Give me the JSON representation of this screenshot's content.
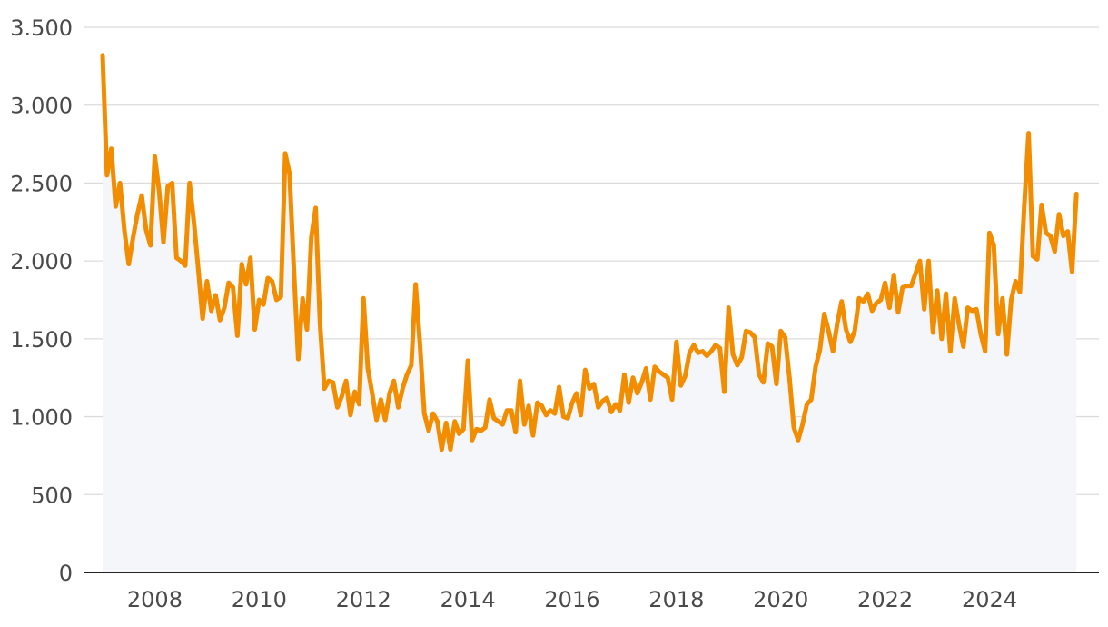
{
  "chart_data": {
    "type": "area",
    "title": "",
    "xlabel": "",
    "ylabel": "",
    "x_start": "2007-01",
    "x_step_months": 1,
    "xlim": [
      2007.0,
      2025.75
    ],
    "ylim": [
      0,
      3500
    ],
    "grid": true,
    "legend": "none",
    "x_ticks": [
      2008,
      2010,
      2012,
      2014,
      2016,
      2018,
      2020,
      2022,
      2024
    ],
    "x_tick_labels": [
      "2008",
      "2010",
      "2012",
      "2014",
      "2016",
      "2018",
      "2020",
      "2022",
      "2024"
    ],
    "y_ticks": [
      0,
      500,
      1000,
      1500,
      2000,
      2500,
      3000,
      3500
    ],
    "y_tick_labels": [
      "0",
      "500",
      "1.000",
      "1.500",
      "2.000",
      "2.500",
      "3.000",
      "3.500"
    ],
    "colors": {
      "line": "#f28c00",
      "fill": "#f5f6fa",
      "grid": "#dcdcdc",
      "axis": "#222222",
      "text": "#4a4a4a"
    },
    "series": [
      {
        "values": [
          3320,
          2550,
          2720,
          2350,
          2500,
          2200,
          1980,
          2150,
          2300,
          2420,
          2200,
          2100,
          2670,
          2450,
          2120,
          2480,
          2500,
          2020,
          2000,
          1970,
          2500,
          2250,
          1950,
          1630,
          1870,
          1680,
          1780,
          1620,
          1700,
          1860,
          1830,
          1520,
          1980,
          1850,
          2020,
          1560,
          1750,
          1720,
          1890,
          1870,
          1750,
          1770,
          2690,
          2560,
          1940,
          1370,
          1760,
          1560,
          2150,
          2340,
          1600,
          1180,
          1230,
          1220,
          1060,
          1130,
          1230,
          1010,
          1160,
          1080,
          1760,
          1310,
          1150,
          980,
          1110,
          980,
          1150,
          1230,
          1060,
          1180,
          1270,
          1330,
          1850,
          1460,
          1020,
          910,
          1020,
          970,
          790,
          960,
          790,
          970,
          890,
          920,
          1360,
          850,
          920,
          910,
          930,
          1110,
          990,
          970,
          950,
          1040,
          1040,
          900,
          1230,
          950,
          1070,
          880,
          1090,
          1070,
          1010,
          1040,
          1020,
          1190,
          1000,
          990,
          1090,
          1150,
          1010,
          1300,
          1180,
          1210,
          1060,
          1100,
          1120,
          1030,
          1080,
          1040,
          1270,
          1090,
          1250,
          1150,
          1220,
          1310,
          1110,
          1320,
          1290,
          1270,
          1250,
          1110,
          1480,
          1200,
          1260,
          1410,
          1460,
          1410,
          1420,
          1390,
          1420,
          1460,
          1440,
          1160,
          1700,
          1400,
          1330,
          1380,
          1550,
          1540,
          1510,
          1270,
          1220,
          1470,
          1450,
          1210,
          1550,
          1510,
          1250,
          930,
          850,
          950,
          1080,
          1110,
          1320,
          1430,
          1660,
          1550,
          1420,
          1600,
          1740,
          1560,
          1480,
          1550,
          1760,
          1740,
          1790,
          1680,
          1730,
          1750,
          1860,
          1700,
          1910,
          1670,
          1830,
          1840,
          1840,
          1920,
          2000,
          1690,
          2000,
          1540,
          1810,
          1500,
          1790,
          1420,
          1760,
          1590,
          1450,
          1700,
          1680,
          1690,
          1530,
          1420,
          2180,
          2100,
          1530,
          1760,
          1400,
          1750,
          1870,
          1800,
          2350,
          2820,
          2030,
          2010,
          2360,
          2180,
          2160,
          2060,
          2300,
          2160,
          2190,
          1930,
          2430
        ]
      }
    ]
  }
}
